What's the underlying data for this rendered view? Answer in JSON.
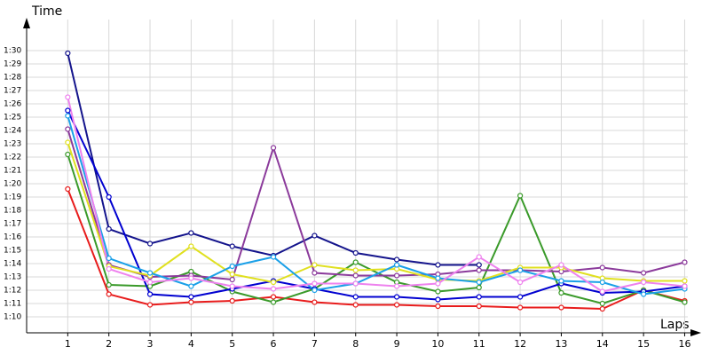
{
  "chart_data": {
    "type": "line",
    "y_label": "Time",
    "x_label": "Laps",
    "x": [
      1,
      2,
      3,
      4,
      5,
      6,
      7,
      8,
      9,
      10,
      11,
      12,
      13,
      14,
      15,
      16
    ],
    "xlim": [
      0,
      16.4
    ],
    "xticks": [
      1,
      2,
      3,
      4,
      5,
      6,
      7,
      8,
      9,
      10,
      11,
      12,
      13,
      14,
      15,
      16
    ],
    "ylim": [
      68.8,
      92.5
    ],
    "yticks": [
      {
        "value": 70,
        "label": "1:10"
      },
      {
        "value": 71,
        "label": "1:11"
      },
      {
        "value": 72,
        "label": "1:12"
      },
      {
        "value": 73,
        "label": "1:13"
      },
      {
        "value": 74,
        "label": "1:14"
      },
      {
        "value": 75,
        "label": "1:15"
      },
      {
        "value": 76,
        "label": "1:16"
      },
      {
        "value": 77,
        "label": "1:17"
      },
      {
        "value": 78,
        "label": "1:18"
      },
      {
        "value": 79,
        "label": "1:19"
      },
      {
        "value": 80,
        "label": "1:20"
      },
      {
        "value": 81,
        "label": "1:21"
      },
      {
        "value": 82,
        "label": "1:22"
      },
      {
        "value": 83,
        "label": "1:23"
      },
      {
        "value": 84,
        "label": "1:24"
      },
      {
        "value": 85,
        "label": "1:25"
      },
      {
        "value": 86,
        "label": "1:26"
      },
      {
        "value": 87,
        "label": "1:27"
      },
      {
        "value": 88,
        "label": "1:28"
      },
      {
        "value": 89,
        "label": "1:29"
      },
      {
        "value": 90,
        "label": "1:30"
      }
    ],
    "grid": true,
    "series": [
      {
        "color": "#e81c1c",
        "values": [
          79.6,
          71.7,
          70.9,
          71.1,
          71.2,
          71.5,
          71.1,
          70.9,
          70.9,
          70.8,
          70.8,
          70.7,
          70.7,
          70.6,
          72.0,
          71.2
        ]
      },
      {
        "color": "#3a9a2a",
        "values": [
          82.2,
          72.4,
          72.3,
          73.4,
          71.9,
          71.1,
          72.1,
          74.1,
          72.6,
          71.9,
          72.2,
          79.1,
          71.8,
          71.0,
          72.0,
          71.1
        ]
      },
      {
        "color": "#14148c",
        "values": [
          89.8,
          76.6,
          75.5,
          76.3,
          75.3,
          74.6,
          76.1,
          74.8,
          74.3,
          73.9,
          73.9,
          null,
          null,
          null,
          null,
          null
        ]
      },
      {
        "color": "#0000d0",
        "values": [
          85.5,
          79.0,
          71.7,
          71.5,
          72.1,
          72.7,
          72.1,
          71.5,
          71.5,
          71.3,
          71.5,
          71.5,
          72.5,
          71.8,
          71.9,
          72.3
        ]
      },
      {
        "color": "#8b3a9b",
        "values": [
          84.1,
          73.9,
          73.0,
          73.1,
          72.8,
          82.7,
          73.3,
          73.1,
          73.1,
          73.2,
          73.5,
          73.5,
          73.4,
          73.7,
          73.3,
          74.1
        ]
      },
      {
        "color": "#e0e020",
        "values": [
          83.1,
          73.8,
          73.1,
          75.3,
          73.2,
          72.6,
          73.9,
          73.5,
          73.6,
          72.8,
          72.7,
          73.7,
          73.7,
          72.9,
          72.7,
          72.7
        ]
      },
      {
        "color": "#1aa0e8",
        "values": [
          85.1,
          74.4,
          73.3,
          72.3,
          73.8,
          74.5,
          72.0,
          72.5,
          73.9,
          72.9,
          72.6,
          73.5,
          72.7,
          72.6,
          71.7,
          72.1
        ]
      },
      {
        "color": "#ee82ee",
        "values": [
          86.5,
          73.6,
          72.6,
          72.9,
          72.3,
          72.1,
          72.5,
          72.5,
          72.3,
          72.5,
          74.5,
          72.6,
          73.9,
          71.9,
          72.6,
          72.3
        ]
      }
    ]
  }
}
